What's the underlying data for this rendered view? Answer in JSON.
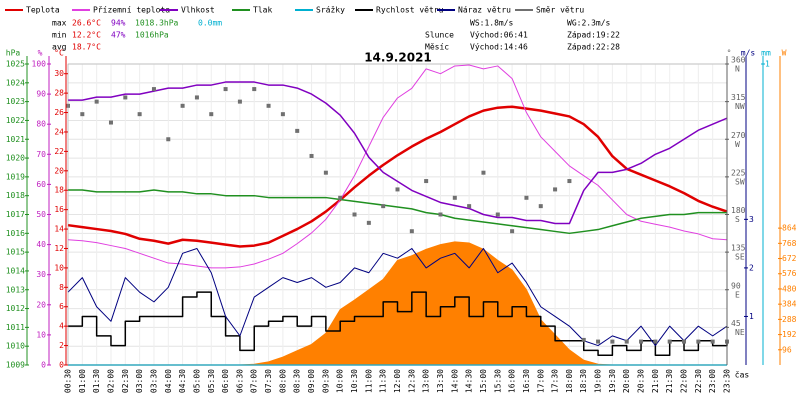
{
  "chart_data": {
    "type": "line",
    "title": "14.9.2021",
    "x_label": "čas",
    "grid": true,
    "categories": [
      "00:30",
      "01:00",
      "01:30",
      "02:00",
      "02:30",
      "03:00",
      "03:30",
      "04:00",
      "04:30",
      "05:00",
      "05:30",
      "06:00",
      "06:30",
      "07:00",
      "07:30",
      "08:00",
      "08:30",
      "09:00",
      "09:30",
      "10:00",
      "10:30",
      "11:00",
      "11:30",
      "12:00",
      "12:30",
      "13:00",
      "13:30",
      "14:00",
      "14:30",
      "15:00",
      "15:30",
      "16:00",
      "16:30",
      "17:00",
      "17:30",
      "18:00",
      "18:30",
      "19:00",
      "19:30",
      "20:00",
      "20:30",
      "21:00",
      "21:30",
      "22:00",
      "22:30",
      "23:00",
      "23:30"
    ],
    "axes": {
      "pressure": {
        "unit": "hPa",
        "color": "#209020",
        "lim": [
          1009,
          1025
        ],
        "ticks": [
          1009,
          1010,
          1011,
          1012,
          1013,
          1014,
          1015,
          1016,
          1017,
          1018,
          1019,
          1020,
          1021,
          1022,
          1023,
          1024,
          1025
        ]
      },
      "humidity": {
        "unit": "%",
        "color": "#c020c0",
        "lim": [
          0,
          100
        ],
        "ticks": [
          0,
          10,
          20,
          30,
          40,
          50,
          60,
          70,
          80,
          90,
          100
        ]
      },
      "temperature": {
        "unit": "°C",
        "color": "#e00000",
        "lim": [
          0,
          31
        ],
        "ticks": [
          0,
          2,
          4,
          6,
          8,
          10,
          12,
          14,
          16,
          18,
          20,
          22,
          24,
          26,
          28,
          30
        ]
      },
      "direction": {
        "unit": "°",
        "color": "#606060",
        "lim": [
          0,
          360
        ],
        "ticks": [
          45,
          90,
          135,
          180,
          225,
          270,
          315,
          360
        ],
        "compass": [
          "NE",
          "E",
          "SE",
          "S",
          "SW",
          "W",
          "NW",
          "N"
        ]
      },
      "wind": {
        "unit": "m/s",
        "color": "#000080",
        "lim": [
          0,
          6.2
        ],
        "ticks": [
          1,
          2,
          3
        ]
      },
      "precipitation": {
        "unit": "mm",
        "color": "#00b0d0",
        "lim": [
          0,
          1
        ],
        "ticks": [
          1
        ]
      },
      "radiation": {
        "unit": "W",
        "color": "#ff8000",
        "lim": [
          0,
          1900
        ],
        "ticks": [
          96,
          192,
          288,
          384,
          480,
          576,
          672,
          768,
          864
        ]
      }
    },
    "series": [
      {
        "name": "Teplota",
        "color": "#e00000",
        "axis": "temperature",
        "style": "line",
        "width": 2.5,
        "values": [
          14.4,
          14.2,
          14.0,
          13.8,
          13.5,
          13.0,
          12.8,
          12.5,
          12.9,
          12.8,
          12.6,
          12.4,
          12.2,
          12.3,
          12.6,
          13.3,
          14.0,
          14.8,
          15.8,
          17.0,
          18.3,
          19.5,
          20.6,
          21.6,
          22.5,
          23.3,
          24.0,
          24.8,
          25.6,
          26.2,
          26.5,
          26.6,
          26.4,
          26.2,
          25.9,
          25.6,
          24.8,
          23.5,
          21.5,
          20.2,
          19.6,
          19.0,
          18.4,
          17.7,
          16.9,
          16.3,
          15.8
        ]
      },
      {
        "name": "Přízemní teplota",
        "color": "#e040e0",
        "axis": "temperature",
        "style": "line",
        "width": 1,
        "values": [
          12.9,
          12.8,
          12.6,
          12.3,
          12.0,
          11.5,
          11.0,
          10.5,
          10.4,
          10.2,
          10.0,
          10.0,
          10.1,
          10.4,
          10.9,
          11.5,
          12.5,
          13.6,
          15.0,
          17.0,
          19.5,
          22.5,
          25.5,
          27.5,
          28.5,
          30.5,
          30.0,
          30.8,
          30.9,
          30.5,
          30.8,
          29.5,
          26.0,
          23.5,
          22.0,
          20.5,
          19.5,
          18.5,
          17.0,
          15.5,
          14.8,
          14.5,
          14.2,
          13.8,
          13.5,
          13.0,
          12.9
        ]
      },
      {
        "name": "Vlhkost",
        "color": "#8000c0",
        "axis": "humidity",
        "style": "line",
        "width": 1.5,
        "values": [
          88,
          88,
          89,
          89,
          90,
          90,
          91,
          92,
          92,
          93,
          93,
          94,
          94,
          94,
          93,
          93,
          92,
          90,
          87,
          83,
          77,
          69,
          64,
          61,
          58,
          56,
          54,
          53,
          52,
          50,
          49,
          49,
          48,
          48,
          47,
          47,
          58,
          64,
          64,
          65,
          67,
          70,
          72,
          75,
          78,
          80,
          82
        ]
      },
      {
        "name": "Tlak",
        "color": "#209020",
        "axis": "pressure",
        "style": "line",
        "width": 1.5,
        "values": [
          1018.3,
          1018.3,
          1018.2,
          1018.2,
          1018.2,
          1018.2,
          1018.3,
          1018.2,
          1018.2,
          1018.1,
          1018.1,
          1018.0,
          1018.0,
          1018.0,
          1017.9,
          1017.9,
          1017.9,
          1017.9,
          1017.9,
          1017.8,
          1017.7,
          1017.6,
          1017.5,
          1017.4,
          1017.3,
          1017.1,
          1017.0,
          1016.8,
          1016.7,
          1016.6,
          1016.5,
          1016.4,
          1016.3,
          1016.2,
          1016.1,
          1016.0,
          1016.1,
          1016.2,
          1016.4,
          1016.6,
          1016.8,
          1016.9,
          1017.0,
          1017.0,
          1017.1,
          1017.1,
          1017.1
        ]
      },
      {
        "name": "Srážky",
        "color": "#00b0d0",
        "axis": "precipitation",
        "style": "line",
        "width": 1.5,
        "values": [
          0,
          0,
          0,
          0,
          0,
          0,
          0,
          0,
          0,
          0,
          0,
          0,
          0,
          0,
          0,
          0,
          0,
          0,
          0,
          0,
          0,
          0,
          0,
          0,
          0,
          0,
          0,
          0,
          0,
          0,
          0,
          0,
          0,
          0,
          0,
          0,
          0,
          0,
          0,
          0,
          0,
          0,
          0,
          0,
          0,
          0,
          0
        ]
      },
      {
        "name": "Rychlost větru",
        "color": "#000000",
        "axis": "wind",
        "style": "step",
        "width": 1.5,
        "values": [
          0.8,
          1.0,
          0.6,
          0.4,
          0.9,
          1.0,
          1.0,
          1.0,
          1.4,
          1.5,
          1.0,
          0.6,
          0.3,
          0.8,
          0.9,
          1.0,
          0.8,
          1.0,
          0.7,
          0.9,
          1.0,
          1.0,
          1.3,
          1.1,
          1.5,
          1.0,
          1.2,
          1.4,
          1.0,
          1.3,
          1.0,
          1.2,
          1.0,
          0.8,
          0.5,
          0.5,
          0.3,
          0.2,
          0.4,
          0.3,
          0.5,
          0.2,
          0.5,
          0.3,
          0.5,
          0.4,
          0.5
        ]
      },
      {
        "name": "Náraz větru",
        "color": "#000080",
        "axis": "wind",
        "style": "line",
        "width": 1,
        "values": [
          1.5,
          1.8,
          1.2,
          0.9,
          1.8,
          1.5,
          1.3,
          1.6,
          2.3,
          2.4,
          1.9,
          1.0,
          0.6,
          1.4,
          1.6,
          1.8,
          1.7,
          1.8,
          1.6,
          1.7,
          2.0,
          1.9,
          2.3,
          2.2,
          2.4,
          2.0,
          2.2,
          2.3,
          2.0,
          2.4,
          1.9,
          2.1,
          1.7,
          1.2,
          1.0,
          0.8,
          0.5,
          0.4,
          0.6,
          0.5,
          0.8,
          0.4,
          0.8,
          0.5,
          0.8,
          0.6,
          0.8
        ]
      },
      {
        "name": "Směr větru",
        "color": "#707070",
        "axis": "direction",
        "style": "points",
        "width": 4,
        "values": [
          310,
          300,
          315,
          290,
          320,
          300,
          330,
          270,
          310,
          320,
          300,
          330,
          315,
          330,
          310,
          300,
          280,
          250,
          230,
          200,
          180,
          170,
          190,
          210,
          160,
          220,
          180,
          200,
          190,
          230,
          180,
          160,
          200,
          190,
          210,
          220,
          30,
          28,
          28,
          28,
          28,
          28,
          28,
          28,
          28,
          28,
          28
        ]
      },
      {
        "color": "#ff8000",
        "axis": "radiation",
        "style": "area",
        "width": 1,
        "values": [
          0,
          0,
          0,
          0,
          0,
          0,
          0,
          0,
          0,
          0,
          0,
          0,
          0,
          5,
          20,
          50,
          90,
          130,
          200,
          350,
          410,
          475,
          540,
          660,
          690,
          730,
          760,
          777,
          770,
          730,
          660,
          600,
          475,
          285,
          190,
          95,
          30,
          5,
          0,
          0,
          0,
          0,
          0,
          0,
          0,
          0,
          0
        ]
      }
    ],
    "stats": [
      {
        "label": "max",
        "temperature": "26.6°C",
        "humidity": "94%",
        "pressure": "1018.3hPa",
        "precipitation": "0.0mm"
      },
      {
        "label": "min",
        "temperature": "12.2°C",
        "humidity": "47%",
        "pressure": "1016hPa"
      },
      {
        "label": "avg",
        "temperature": "18.7°C"
      }
    ],
    "info": [
      [
        "WS:1.8m/s",
        "WG:2.3m/s"
      ],
      [
        "Slunce",
        "Východ:06:41",
        "Západ:19:22"
      ],
      [
        "Měsíc",
        "Východ:14:46",
        "Západ:22:28"
      ]
    ]
  }
}
